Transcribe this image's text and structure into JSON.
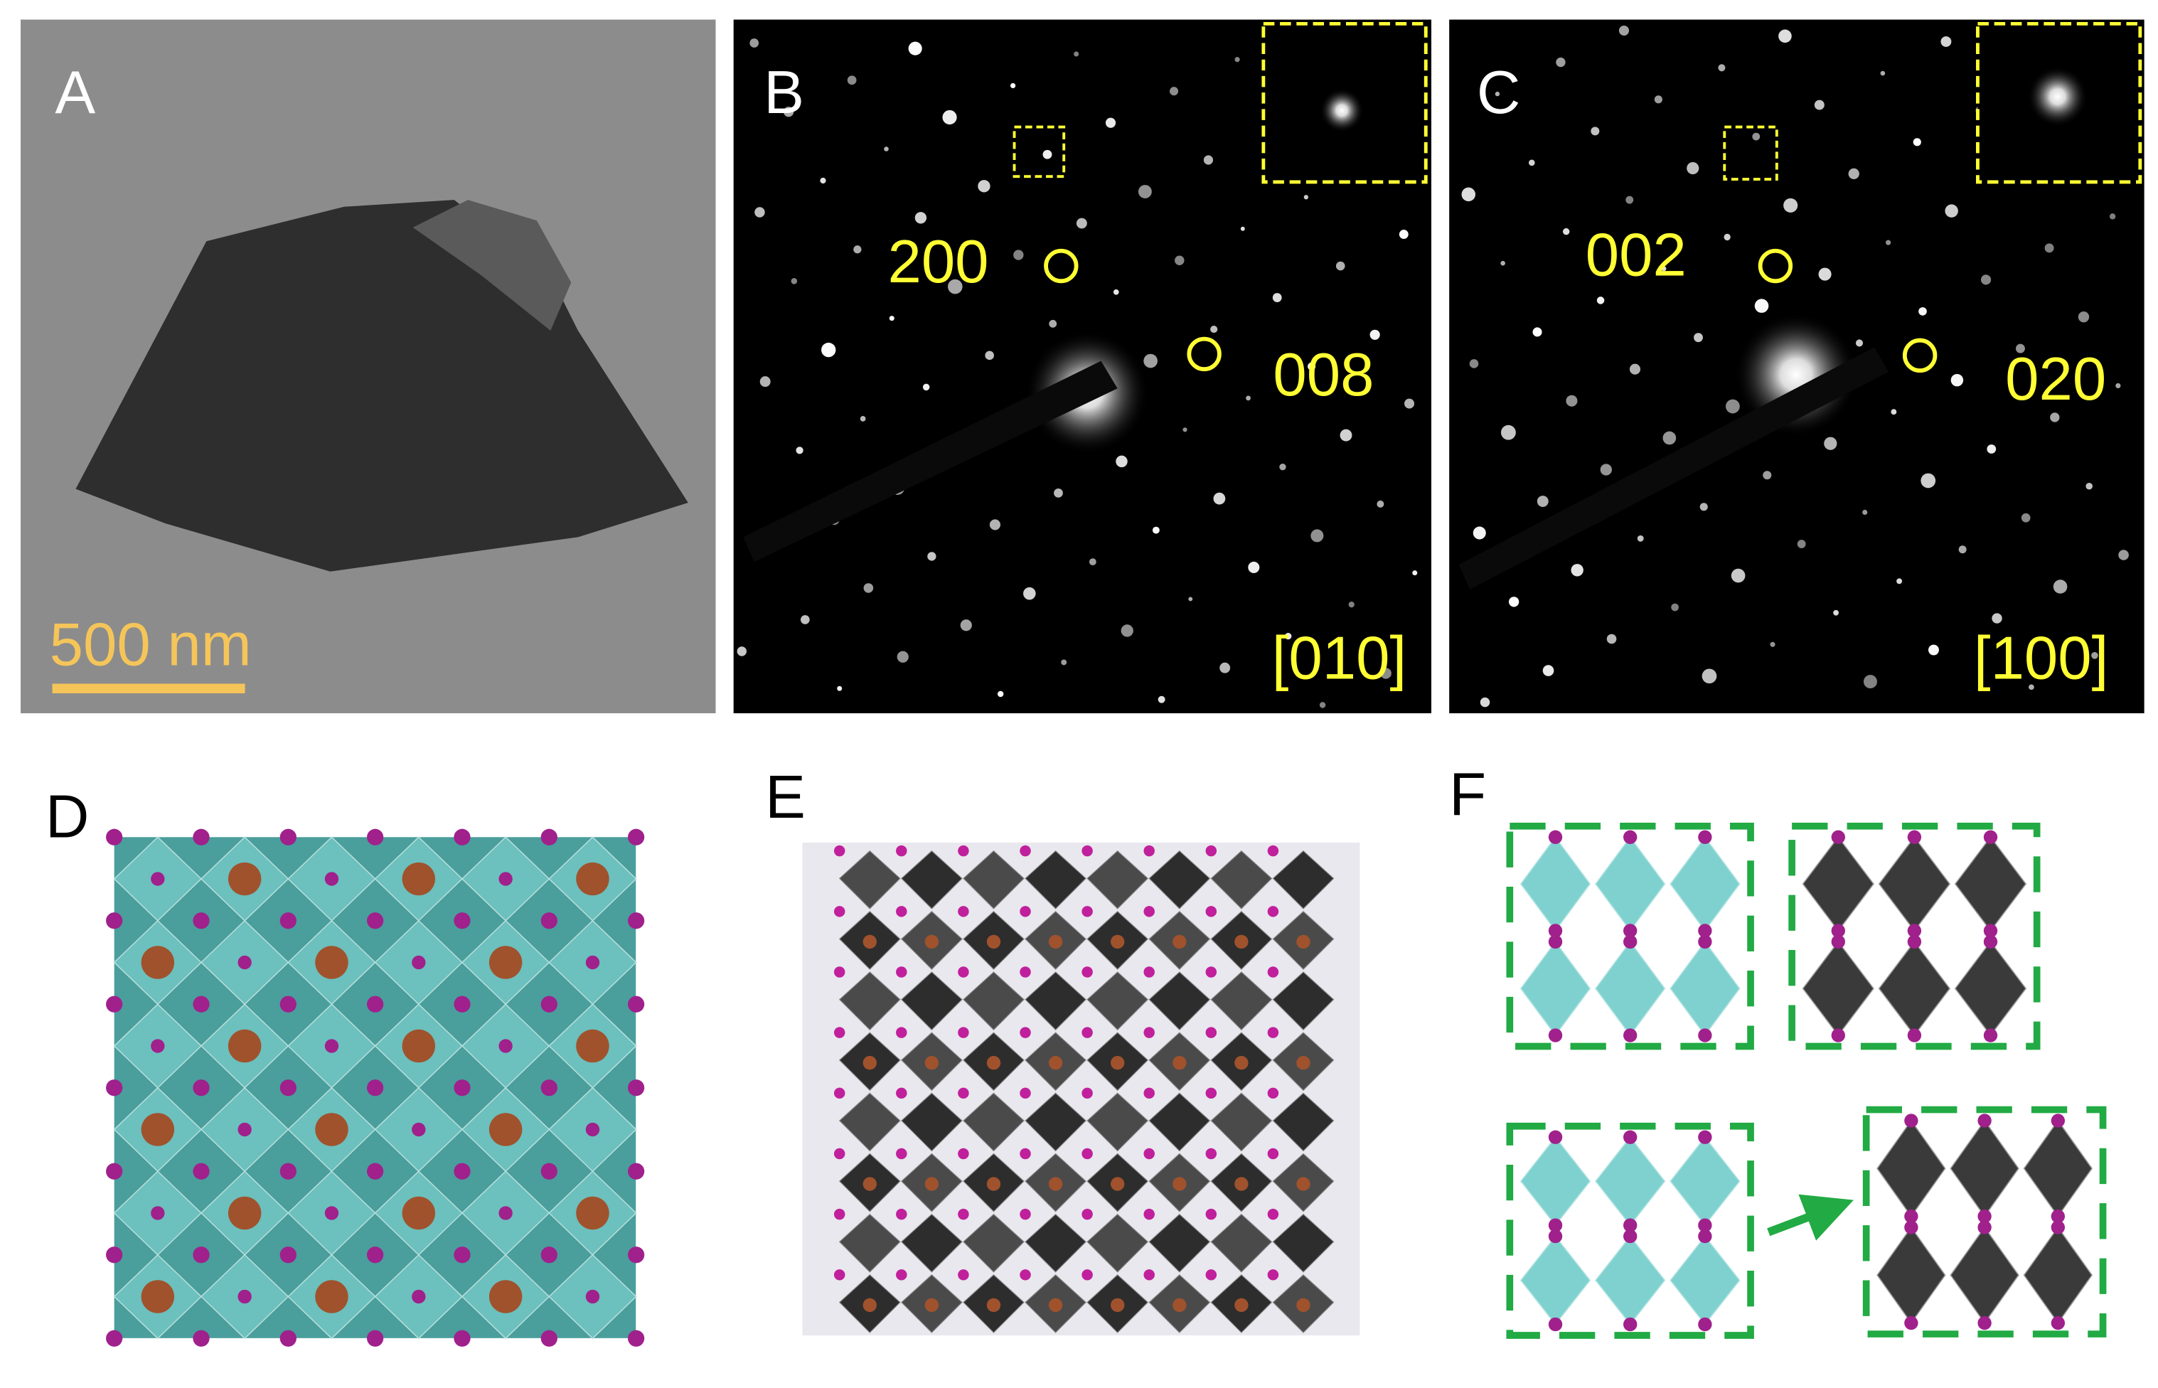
{
  "panels": [
    {
      "label": "A",
      "scale_bar": "500 nm"
    },
    {
      "label": "B",
      "spots": [
        "200",
        "008"
      ],
      "zone_axis": "[010]"
    },
    {
      "label": "C",
      "spots": [
        "002",
        "020"
      ],
      "zone_axis": "[100]"
    },
    {
      "label": "D"
    },
    {
      "label": "E"
    },
    {
      "label": "F"
    }
  ]
}
